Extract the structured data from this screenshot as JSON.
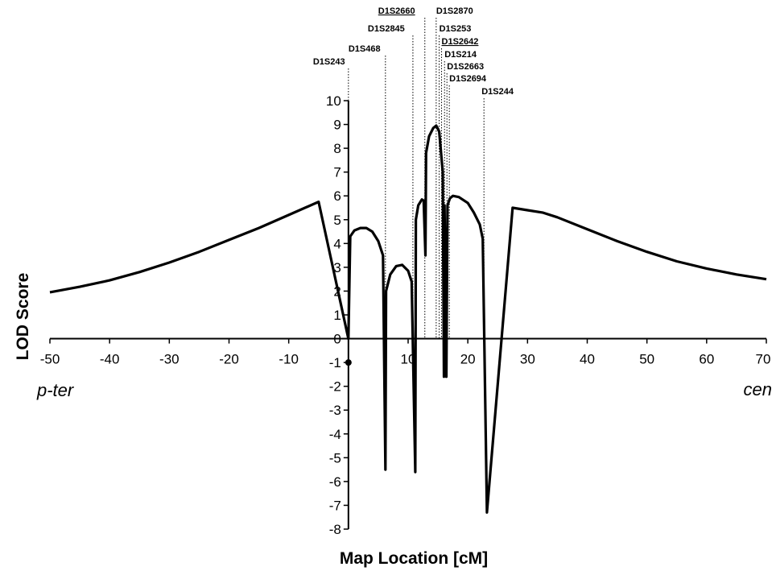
{
  "chart_data": {
    "type": "line",
    "xlabel": "Map Location [cM]",
    "ylabel": "LOD Score",
    "xlim": [
      -50,
      70
    ],
    "ylim": [
      -8,
      10
    ],
    "x_ticks": [
      -50,
      -40,
      -30,
      -20,
      -10,
      0,
      10,
      20,
      30,
      40,
      50,
      60,
      70
    ],
    "y_ticks": [
      10,
      9,
      8,
      7,
      6,
      5,
      4,
      3,
      2,
      1,
      0,
      -1,
      -2,
      -3,
      -4,
      -5,
      -6,
      -7,
      -8
    ],
    "x_end_labels": {
      "left": "p-ter",
      "right": "cen"
    },
    "markers": [
      {
        "name": "D1S243",
        "x": 0,
        "underline": false
      },
      {
        "name": "D1S468",
        "x": 6.2,
        "underline": false
      },
      {
        "name": "D1S2845",
        "x": 10.8,
        "underline": false
      },
      {
        "name": "D1S2660",
        "x": 12.8,
        "underline": true
      },
      {
        "name": "D1S2870",
        "x": 14.7,
        "underline": false
      },
      {
        "name": "D1S253",
        "x": 15.2,
        "underline": false
      },
      {
        "name": "D1S2642",
        "x": 15.6,
        "underline": true
      },
      {
        "name": "D1S214",
        "x": 16.1,
        "underline": false
      },
      {
        "name": "D1S2663",
        "x": 16.5,
        "underline": false
      },
      {
        "name": "D1S2694",
        "x": 16.9,
        "underline": false
      },
      {
        "name": "D1S244",
        "x": 22.7,
        "underline": false
      }
    ],
    "series": [
      {
        "points": [
          [
            -50,
            1.95
          ],
          [
            -45,
            2.18
          ],
          [
            -40,
            2.45
          ],
          [
            -35,
            2.8
          ],
          [
            -30,
            3.2
          ],
          [
            -25,
            3.65
          ],
          [
            -20,
            4.15
          ],
          [
            -15,
            4.65
          ],
          [
            -10,
            5.2
          ],
          [
            -5,
            5.75
          ],
          [
            0,
            0
          ],
          [
            0.3,
            4.3
          ],
          [
            1,
            4.55
          ],
          [
            2,
            4.65
          ],
          [
            3,
            4.65
          ],
          [
            4,
            4.5
          ],
          [
            5,
            4.1
          ],
          [
            5.8,
            3.5
          ],
          [
            6.2,
            -5.5
          ],
          [
            6.3,
            2.0
          ],
          [
            7,
            2.7
          ],
          [
            8,
            3.05
          ],
          [
            9,
            3.1
          ],
          [
            10,
            2.85
          ],
          [
            10.6,
            2.4
          ],
          [
            11.2,
            -5.6
          ],
          [
            11.3,
            5.0
          ],
          [
            11.7,
            5.6
          ],
          [
            12.3,
            5.85
          ],
          [
            12.6,
            5.8
          ],
          [
            12.9,
            3.5
          ],
          [
            13.0,
            7.8
          ],
          [
            13.5,
            8.5
          ],
          [
            14.2,
            8.85
          ],
          [
            14.7,
            8.95
          ],
          [
            15.2,
            8.7
          ],
          [
            15.8,
            7.0
          ],
          [
            16.0,
            -1.6
          ],
          [
            16.1,
            5.6
          ],
          [
            16.4,
            -1.6
          ],
          [
            16.6,
            5.6
          ],
          [
            17.0,
            5.9
          ],
          [
            17.5,
            6.0
          ],
          [
            18.5,
            5.95
          ],
          [
            20,
            5.7
          ],
          [
            21,
            5.3
          ],
          [
            22,
            4.8
          ],
          [
            22.5,
            4.2
          ],
          [
            23.2,
            -7.3
          ],
          [
            27.5,
            5.5
          ],
          [
            30,
            5.4
          ],
          [
            32.5,
            5.3
          ],
          [
            35,
            5.1
          ],
          [
            40,
            4.6
          ],
          [
            45,
            4.1
          ],
          [
            50,
            3.65
          ],
          [
            55,
            3.25
          ],
          [
            60,
            2.95
          ],
          [
            65,
            2.7
          ],
          [
            70,
            2.5
          ]
        ]
      }
    ]
  }
}
